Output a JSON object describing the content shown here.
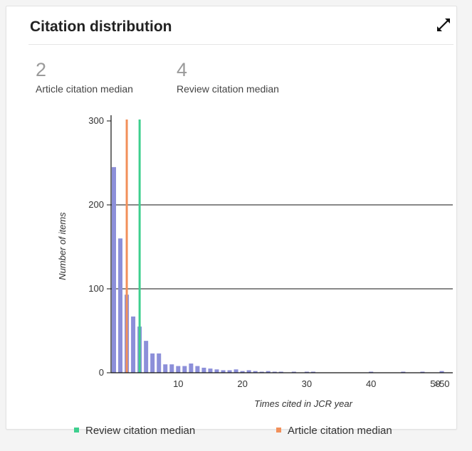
{
  "card": {
    "title": "Citation distribution"
  },
  "icons": {
    "expand": "expand-arrows-icon"
  },
  "medians": {
    "article": {
      "value": "2",
      "label": "Article citation median"
    },
    "review": {
      "value": "4",
      "label": "Review citation median"
    }
  },
  "colors": {
    "bars": "#8c8fd9",
    "article_median": "#f2905a",
    "review_median": "#3ecf8e",
    "gridline": "#111111"
  },
  "legend": {
    "review": "Review citation median",
    "article": "Article citation median"
  },
  "chart_data": {
    "type": "bar",
    "xlabel": "Times cited in JCR year",
    "ylabel": "Number of items",
    "ylim": [
      0,
      300
    ],
    "xlim": [
      0,
      51
    ],
    "y_ticks": [
      "0",
      "100",
      "200",
      "300"
    ],
    "x_ticks": [
      {
        "x": 10,
        "label": "10"
      },
      {
        "x": 20,
        "label": "20"
      },
      {
        "x": 30,
        "label": "30"
      },
      {
        "x": 40,
        "label": "40"
      },
      {
        "x": 50,
        "label": "50"
      },
      {
        "x": 51,
        "label": ">50"
      }
    ],
    "grid": "horizontal",
    "legend_position": "bottom",
    "bars": [
      {
        "x": 0,
        "y": 245
      },
      {
        "x": 1,
        "y": 160
      },
      {
        "x": 2,
        "y": 93
      },
      {
        "x": 3,
        "y": 67
      },
      {
        "x": 4,
        "y": 55
      },
      {
        "x": 5,
        "y": 38
      },
      {
        "x": 6,
        "y": 23
      },
      {
        "x": 7,
        "y": 23
      },
      {
        "x": 8,
        "y": 10
      },
      {
        "x": 9,
        "y": 10
      },
      {
        "x": 10,
        "y": 8
      },
      {
        "x": 11,
        "y": 8
      },
      {
        "x": 12,
        "y": 11
      },
      {
        "x": 13,
        "y": 8
      },
      {
        "x": 14,
        "y": 6
      },
      {
        "x": 15,
        "y": 5
      },
      {
        "x": 16,
        "y": 4
      },
      {
        "x": 17,
        "y": 3
      },
      {
        "x": 18,
        "y": 3
      },
      {
        "x": 19,
        "y": 4
      },
      {
        "x": 20,
        "y": 2
      },
      {
        "x": 21,
        "y": 3
      },
      {
        "x": 22,
        "y": 2
      },
      {
        "x": 23,
        "y": 1
      },
      {
        "x": 24,
        "y": 2
      },
      {
        "x": 25,
        "y": 1
      },
      {
        "x": 26,
        "y": 1
      },
      {
        "x": 28,
        "y": 1
      },
      {
        "x": 30,
        "y": 1
      },
      {
        "x": 31,
        "y": 1
      },
      {
        "x": 40,
        "y": 1
      },
      {
        "x": 45,
        "y": 1
      },
      {
        "x": 48,
        "y": 1
      },
      {
        "x": 51,
        "y": 2
      }
    ],
    "median_lines": [
      {
        "x": 2,
        "series": "article"
      },
      {
        "x": 4,
        "series": "review"
      }
    ]
  }
}
